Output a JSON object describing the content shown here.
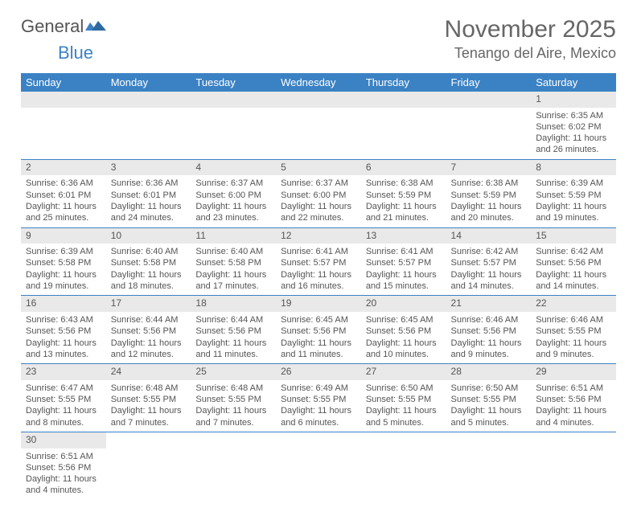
{
  "logo": {
    "text1": "General",
    "text2": "Blue"
  },
  "title": "November 2025",
  "location": "Tenango del Aire, Mexico",
  "colors": {
    "header_bg": "#3b82c4",
    "header_fg": "#ffffff",
    "daynum_bg": "#e9e9e9",
    "text": "#555555",
    "rule": "#3b82c4"
  },
  "days": [
    "Sunday",
    "Monday",
    "Tuesday",
    "Wednesday",
    "Thursday",
    "Friday",
    "Saturday"
  ],
  "weeks": [
    [
      null,
      null,
      null,
      null,
      null,
      null,
      {
        "n": "1",
        "sr": "6:35 AM",
        "ss": "6:02 PM",
        "dl": "11 hours and 26 minutes."
      }
    ],
    [
      {
        "n": "2",
        "sr": "6:36 AM",
        "ss": "6:01 PM",
        "dl": "11 hours and 25 minutes."
      },
      {
        "n": "3",
        "sr": "6:36 AM",
        "ss": "6:01 PM",
        "dl": "11 hours and 24 minutes."
      },
      {
        "n": "4",
        "sr": "6:37 AM",
        "ss": "6:00 PM",
        "dl": "11 hours and 23 minutes."
      },
      {
        "n": "5",
        "sr": "6:37 AM",
        "ss": "6:00 PM",
        "dl": "11 hours and 22 minutes."
      },
      {
        "n": "6",
        "sr": "6:38 AM",
        "ss": "5:59 PM",
        "dl": "11 hours and 21 minutes."
      },
      {
        "n": "7",
        "sr": "6:38 AM",
        "ss": "5:59 PM",
        "dl": "11 hours and 20 minutes."
      },
      {
        "n": "8",
        "sr": "6:39 AM",
        "ss": "5:59 PM",
        "dl": "11 hours and 19 minutes."
      }
    ],
    [
      {
        "n": "9",
        "sr": "6:39 AM",
        "ss": "5:58 PM",
        "dl": "11 hours and 19 minutes."
      },
      {
        "n": "10",
        "sr": "6:40 AM",
        "ss": "5:58 PM",
        "dl": "11 hours and 18 minutes."
      },
      {
        "n": "11",
        "sr": "6:40 AM",
        "ss": "5:58 PM",
        "dl": "11 hours and 17 minutes."
      },
      {
        "n": "12",
        "sr": "6:41 AM",
        "ss": "5:57 PM",
        "dl": "11 hours and 16 minutes."
      },
      {
        "n": "13",
        "sr": "6:41 AM",
        "ss": "5:57 PM",
        "dl": "11 hours and 15 minutes."
      },
      {
        "n": "14",
        "sr": "6:42 AM",
        "ss": "5:57 PM",
        "dl": "11 hours and 14 minutes."
      },
      {
        "n": "15",
        "sr": "6:42 AM",
        "ss": "5:56 PM",
        "dl": "11 hours and 14 minutes."
      }
    ],
    [
      {
        "n": "16",
        "sr": "6:43 AM",
        "ss": "5:56 PM",
        "dl": "11 hours and 13 minutes."
      },
      {
        "n": "17",
        "sr": "6:44 AM",
        "ss": "5:56 PM",
        "dl": "11 hours and 12 minutes."
      },
      {
        "n": "18",
        "sr": "6:44 AM",
        "ss": "5:56 PM",
        "dl": "11 hours and 11 minutes."
      },
      {
        "n": "19",
        "sr": "6:45 AM",
        "ss": "5:56 PM",
        "dl": "11 hours and 11 minutes."
      },
      {
        "n": "20",
        "sr": "6:45 AM",
        "ss": "5:56 PM",
        "dl": "11 hours and 10 minutes."
      },
      {
        "n": "21",
        "sr": "6:46 AM",
        "ss": "5:56 PM",
        "dl": "11 hours and 9 minutes."
      },
      {
        "n": "22",
        "sr": "6:46 AM",
        "ss": "5:55 PM",
        "dl": "11 hours and 9 minutes."
      }
    ],
    [
      {
        "n": "23",
        "sr": "6:47 AM",
        "ss": "5:55 PM",
        "dl": "11 hours and 8 minutes."
      },
      {
        "n": "24",
        "sr": "6:48 AM",
        "ss": "5:55 PM",
        "dl": "11 hours and 7 minutes."
      },
      {
        "n": "25",
        "sr": "6:48 AM",
        "ss": "5:55 PM",
        "dl": "11 hours and 7 minutes."
      },
      {
        "n": "26",
        "sr": "6:49 AM",
        "ss": "5:55 PM",
        "dl": "11 hours and 6 minutes."
      },
      {
        "n": "27",
        "sr": "6:50 AM",
        "ss": "5:55 PM",
        "dl": "11 hours and 5 minutes."
      },
      {
        "n": "28",
        "sr": "6:50 AM",
        "ss": "5:55 PM",
        "dl": "11 hours and 5 minutes."
      },
      {
        "n": "29",
        "sr": "6:51 AM",
        "ss": "5:56 PM",
        "dl": "11 hours and 4 minutes."
      }
    ],
    [
      {
        "n": "30",
        "sr": "6:51 AM",
        "ss": "5:56 PM",
        "dl": "11 hours and 4 minutes."
      },
      null,
      null,
      null,
      null,
      null,
      null
    ]
  ],
  "labels": {
    "sunrise": "Sunrise:",
    "sunset": "Sunset:",
    "daylight": "Daylight:"
  }
}
